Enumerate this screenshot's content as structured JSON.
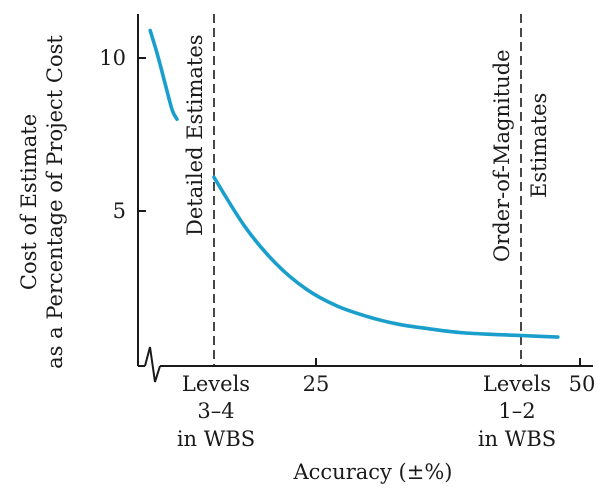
{
  "chart_data": {
    "type": "line",
    "title": "",
    "xlabel": "Accuracy (±%)",
    "ylabel": "Cost of Estimate as a Percentage of Project Cost",
    "ylabel_lines": [
      "Cost of Estimate",
      "as a Percentage of Project Cost"
    ],
    "x_axis_break": true,
    "ylim": [
      0,
      11.3
    ],
    "yticks": [
      {
        "value": 5,
        "label": "5"
      },
      {
        "value": 10,
        "label": "10"
      }
    ],
    "xticks": [
      {
        "value": 25,
        "label": "25"
      },
      {
        "value": 50,
        "label": "50"
      }
    ],
    "reference_lines": [
      {
        "x": 0,
        "label": "Detailed Estimates",
        "axis_label": [
          "Levels",
          "3–4",
          "in WBS"
        ]
      },
      {
        "x": 50,
        "label_lines": [
          "Order-of-Magnitude",
          "Estimates"
        ],
        "axis_label": [
          "Levels",
          "1–2",
          "in WBS"
        ]
      }
    ],
    "series": [
      {
        "color": "#1a9fcc",
        "segment_before_break": [
          {
            "x": 1.0,
            "y": 10.9
          },
          {
            "x": 1.6,
            "y": 10.1
          },
          {
            "x": 2.2,
            "y": 9.2
          },
          {
            "x": 2.8,
            "y": 8.3
          },
          {
            "x": 3.2,
            "y": 8.0
          }
        ],
        "segment_after_break": [
          {
            "x": 0,
            "y": 6.1
          },
          {
            "x": 5,
            "y": 4.5
          },
          {
            "x": 10,
            "y": 3.3
          },
          {
            "x": 15,
            "y": 2.45
          },
          {
            "x": 20,
            "y": 1.9
          },
          {
            "x": 25,
            "y": 1.55
          },
          {
            "x": 30,
            "y": 1.3
          },
          {
            "x": 35,
            "y": 1.15
          },
          {
            "x": 40,
            "y": 1.03
          },
          {
            "x": 45,
            "y": 0.97
          },
          {
            "x": 50,
            "y": 0.93
          },
          {
            "x": 56,
            "y": 0.88
          }
        ]
      }
    ]
  }
}
